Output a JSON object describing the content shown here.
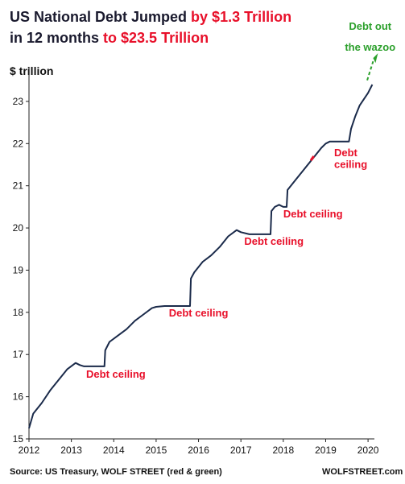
{
  "chart_data": {
    "type": "line",
    "title_part1": "US National Debt Jumped",
    "title_part2": "by $1.3 Trillion",
    "title_part3": "in 12 months",
    "title_part4": "to $23.5 Trillion",
    "ylabel": "$ trillion",
    "xlim": [
      2012,
      2020.15
    ],
    "ylim": [
      15,
      23.8
    ],
    "x_ticks": [
      "2012",
      "2013",
      "2014",
      "2015",
      "2016",
      "2017",
      "2018",
      "2019",
      "2020"
    ],
    "y_ticks": [
      "15",
      "16",
      "17",
      "18",
      "19",
      "20",
      "21",
      "22",
      "23"
    ],
    "series": [
      {
        "color": "#1a2a4a",
        "x": [
          2012.0,
          2012.1,
          2012.3,
          2012.5,
          2012.7,
          2012.9,
          2013.1,
          2013.2,
          2013.3,
          2013.45,
          2013.78,
          2013.8,
          2013.9,
          2014.1,
          2014.3,
          2014.5,
          2014.7,
          2014.9,
          2015.0,
          2015.2,
          2015.8,
          2015.82,
          2015.9,
          2016.1,
          2016.3,
          2016.5,
          2016.7,
          2016.9,
          2017.0,
          2017.2,
          2017.7,
          2017.72,
          2017.8,
          2017.9,
          2018.0,
          2018.08,
          2018.1,
          2018.3,
          2018.5,
          2018.7,
          2018.9,
          2019.0,
          2019.1,
          2019.55,
          2019.6,
          2019.7,
          2019.8,
          2019.9,
          2020.0,
          2020.1
        ],
        "y": [
          15.25,
          15.6,
          15.85,
          16.15,
          16.4,
          16.65,
          16.8,
          16.75,
          16.72,
          16.72,
          16.72,
          17.1,
          17.3,
          17.45,
          17.6,
          17.8,
          17.95,
          18.1,
          18.13,
          18.15,
          18.15,
          18.8,
          18.95,
          19.2,
          19.35,
          19.55,
          19.8,
          19.95,
          19.9,
          19.85,
          19.85,
          20.4,
          20.5,
          20.55,
          20.5,
          20.5,
          20.9,
          21.15,
          21.4,
          21.65,
          21.9,
          22.0,
          22.05,
          22.05,
          22.35,
          22.65,
          22.9,
          23.05,
          23.2,
          23.4
        ]
      },
      {
        "color": "#e8102a",
        "x": [
          2018.65,
          2018.72
        ],
        "y": [
          21.6,
          21.7
        ]
      }
    ],
    "annotations": [
      {
        "text": "Debt ceiling",
        "x": 2013.35,
        "y": 16.45,
        "color": "red"
      },
      {
        "text": "Debt ceiling",
        "x": 2015.3,
        "y": 17.9,
        "color": "red"
      },
      {
        "text": "Debt ceiling",
        "x": 2017.08,
        "y": 19.6,
        "color": "red"
      },
      {
        "text": "Debt ceiling",
        "x": 2018.0,
        "y": 20.25,
        "color": "red"
      },
      {
        "text": "Debt",
        "x": 2019.2,
        "y": 21.7,
        "color": "red"
      },
      {
        "text": "ceiling",
        "x": 2019.2,
        "y": 21.42,
        "color": "red"
      },
      {
        "text": "Debt out",
        "x": 2020.05,
        "y": 24.7,
        "color": "green"
      },
      {
        "text": "the wazoo",
        "x": 2020.05,
        "y": 24.2,
        "color": "green"
      }
    ]
  },
  "footer": {
    "source": "Source: US Treasury, WOLF STREET (red & green)",
    "brand": "WOLFSTREET.com"
  }
}
